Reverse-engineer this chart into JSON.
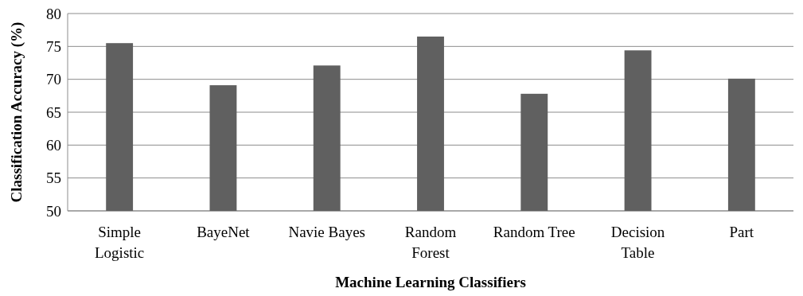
{
  "chart_data": {
    "type": "bar",
    "xlabel": "Machine Learning Classifiers",
    "ylabel": "Classification Accuracy (%)",
    "categories": [
      "Simple Logistic",
      "BayeNet",
      "Navie Bayes",
      "Random Forest",
      "Random Tree",
      "Decision Table",
      "Part"
    ],
    "values": [
      75.5,
      69.1,
      72.1,
      76.5,
      67.8,
      74.4,
      70.1
    ],
    "color": "#606060",
    "ylim": [
      50,
      80
    ],
    "yticks": [
      50,
      55,
      60,
      65,
      70,
      75,
      80
    ],
    "grid": "y"
  }
}
